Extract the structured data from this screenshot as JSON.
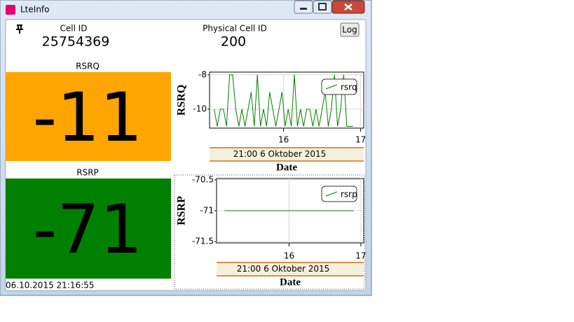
{
  "window": {
    "title": "LteInfo"
  },
  "header": {
    "cell_id_label": "Cell ID",
    "cell_id": "25754369",
    "pci_label": "Physical Cell ID",
    "pci": "200",
    "log_button": "Log"
  },
  "tiles": [
    {
      "label": "RSRQ",
      "value": -11,
      "color": "#ffa500"
    },
    {
      "label": "RSRP",
      "value": -71,
      "color": "#008000"
    }
  ],
  "timestamp": "06.10.2015 21:16:55",
  "chart_data": [
    {
      "type": "line",
      "ylabel": "RSRQ",
      "xlabel": "Date",
      "time_label": "21:00 6 Oktober 2015",
      "x": [
        15.1,
        15.14,
        15.18,
        15.22,
        15.26,
        15.3,
        15.34,
        15.38,
        15.42,
        15.46,
        15.5,
        15.54,
        15.58,
        15.62,
        15.66,
        15.7,
        15.74,
        15.78,
        15.82,
        15.86,
        15.9,
        15.94,
        15.98,
        16.02,
        16.06,
        16.1,
        16.14,
        16.18,
        16.22,
        16.26,
        16.3,
        16.34,
        16.38,
        16.42,
        16.46,
        16.5,
        16.54,
        16.58,
        16.62,
        16.66,
        16.7,
        16.74,
        16.78,
        16.82,
        16.86,
        16.9
      ],
      "series": [
        {
          "name": "rsrq",
          "color": "#008000",
          "values": [
            -10,
            -11,
            -10,
            -10,
            -11,
            -8,
            -8,
            -10,
            -11,
            -10,
            -11,
            -10,
            -9,
            -11,
            -8,
            -11,
            -10,
            -11,
            -9,
            -10,
            -11,
            -10,
            -9,
            -11,
            -10,
            -11,
            -8,
            -11,
            -10,
            -11,
            -10,
            -10,
            -11,
            -10,
            -11,
            -10,
            -9,
            -11,
            -10,
            -8,
            -11,
            -10,
            -8,
            -11,
            -11,
            -11
          ]
        }
      ],
      "xlim": [
        15.04,
        17.04
      ],
      "xticks": [
        16,
        17
      ],
      "ylim": [
        -11.1,
        -7.84
      ],
      "yticks": [
        -8,
        -10
      ],
      "grid": true
    },
    {
      "type": "line",
      "ylabel": "RSRP",
      "xlabel": "Date",
      "time_label": "21:00 6 Oktober 2015",
      "x": [
        15.1,
        16.9
      ],
      "series": [
        {
          "name": "rsrp",
          "color": "#008000",
          "values": [
            -71,
            -71
          ]
        }
      ],
      "xlim": [
        14.99,
        17.04
      ],
      "xticks": [
        16,
        17
      ],
      "ylim": [
        -71.52,
        -70.48
      ],
      "yticks": [
        -70.5,
        -71,
        -71.5
      ],
      "grid": true
    }
  ]
}
